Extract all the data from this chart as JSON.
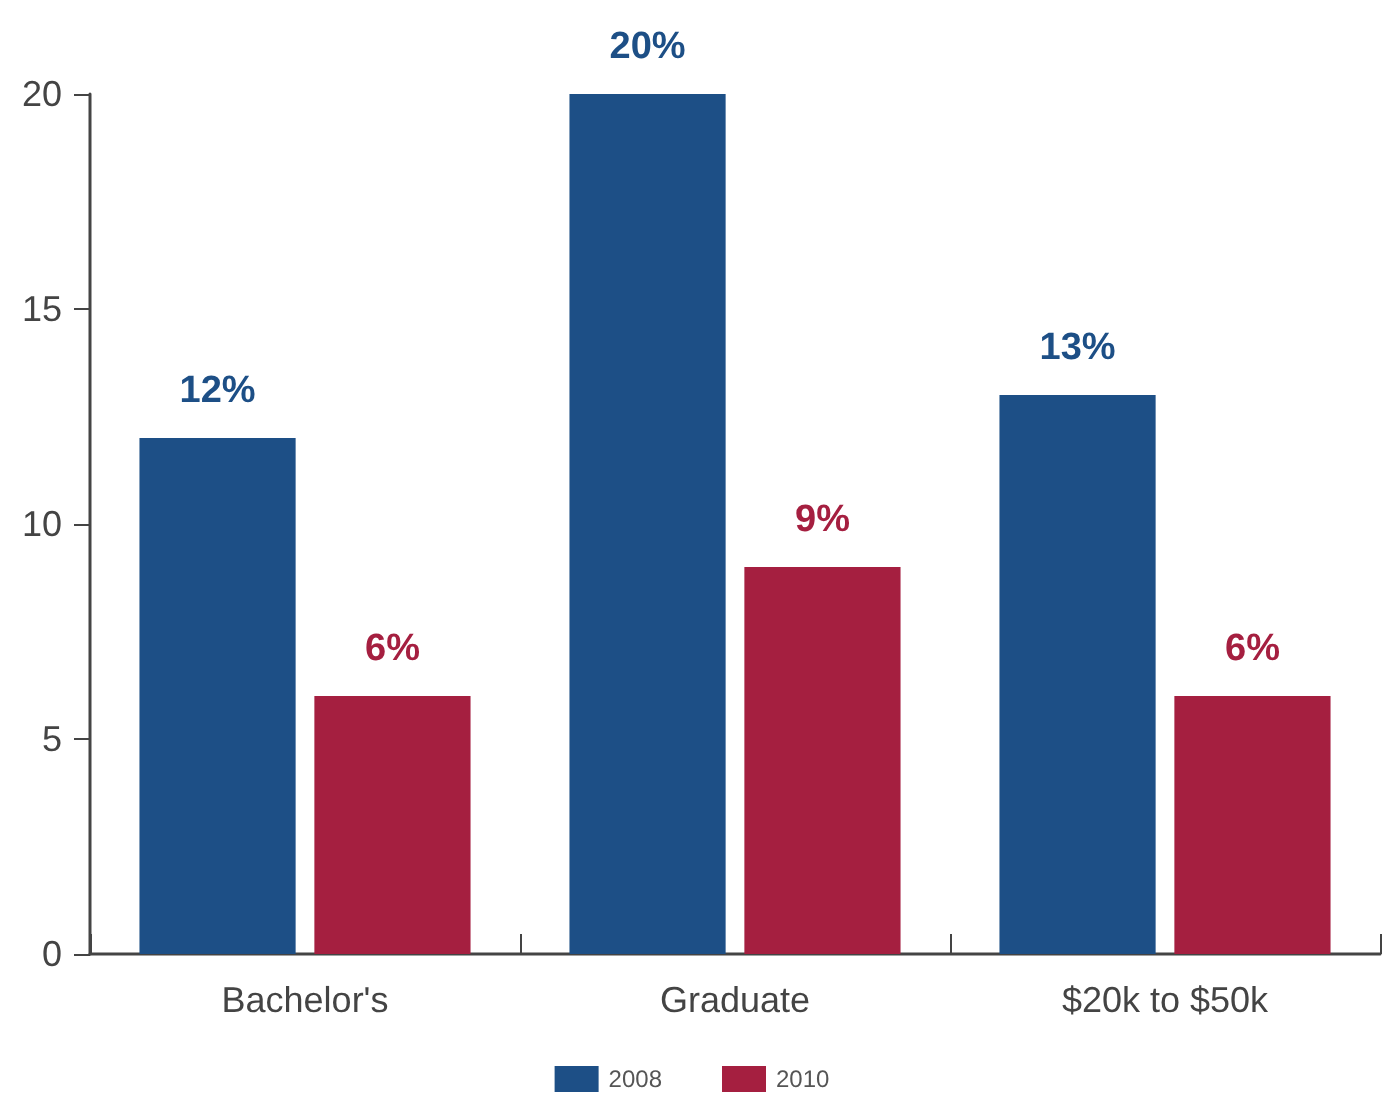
{
  "chart_data": {
    "type": "bar",
    "categories": [
      "Bachelor's",
      "Graduate",
      "$20k to $50k"
    ],
    "series": [
      {
        "name": "2008",
        "color": "#1d4f86",
        "values": [
          12,
          20,
          13
        ],
        "value_labels": [
          "12%",
          "20%",
          "13%"
        ]
      },
      {
        "name": "2010",
        "color": "#a51f40",
        "values": [
          6,
          9,
          6
        ],
        "value_labels": [
          "6%",
          "9%",
          "6%"
        ]
      }
    ],
    "ylim": [
      0,
      20
    ],
    "yticks": [
      0,
      5,
      10,
      15,
      20
    ],
    "grid": false,
    "legend": "bottom"
  }
}
